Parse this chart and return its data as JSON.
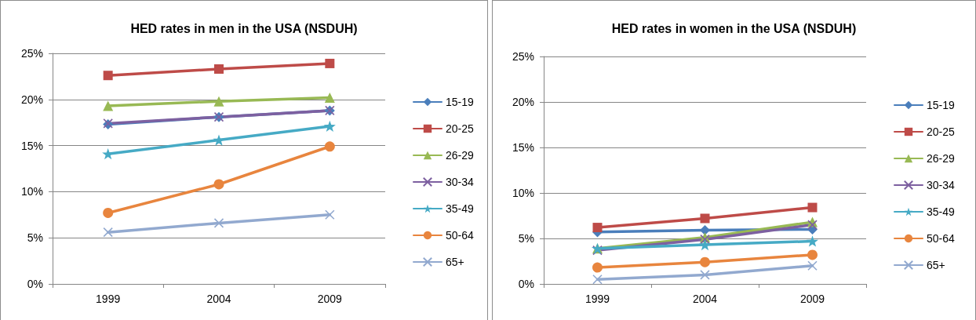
{
  "chart_data": [
    {
      "type": "line",
      "title": "HED rates in men in the USA (NSDUH)",
      "categories": [
        "1999",
        "2004",
        "2009"
      ],
      "ylim": [
        0,
        25
      ],
      "yticks": [
        {
          "value": 0,
          "label": "0%"
        },
        {
          "value": 5,
          "label": "5%"
        },
        {
          "value": 10,
          "label": "10%"
        },
        {
          "value": 15,
          "label": "15%"
        },
        {
          "value": 20,
          "label": "20%"
        },
        {
          "value": 25,
          "label": "25%"
        }
      ],
      "grid": "y",
      "legend": "right",
      "series": [
        {
          "name": "15-19",
          "color": "#4a7ebb",
          "marker": "diamond",
          "values": [
            17.3,
            18.1,
            18.8
          ]
        },
        {
          "name": "20-25",
          "color": "#be4b48",
          "marker": "square",
          "values": [
            22.6,
            23.3,
            23.9
          ]
        },
        {
          "name": "26-29",
          "color": "#98b954",
          "marker": "triangle",
          "values": [
            19.3,
            19.8,
            20.2
          ]
        },
        {
          "name": "30-34",
          "color": "#7d60a0",
          "marker": "cross",
          "values": [
            17.4,
            18.1,
            18.8
          ]
        },
        {
          "name": "35-49",
          "color": "#46aac5",
          "marker": "star",
          "values": [
            14.1,
            15.6,
            17.1
          ]
        },
        {
          "name": "50-64",
          "color": "#e8853e",
          "marker": "circle",
          "values": [
            7.7,
            10.8,
            14.9
          ]
        },
        {
          "name": "65+",
          "color": "#92a9cf",
          "marker": "cross",
          "values": [
            5.6,
            6.6,
            7.5
          ]
        }
      ]
    },
    {
      "type": "line",
      "title": "HED rates in women in the USA (NSDUH)",
      "categories": [
        "1999",
        "2004",
        "2009"
      ],
      "ylim": [
        0,
        25
      ],
      "yticks": [
        {
          "value": 0,
          "label": "0%"
        },
        {
          "value": 5,
          "label": "5%"
        },
        {
          "value": 10,
          "label": "10%"
        },
        {
          "value": 15,
          "label": "15%"
        },
        {
          "value": 20,
          "label": "20%"
        },
        {
          "value": 25,
          "label": "25%"
        }
      ],
      "grid": "y",
      "legend": "right",
      "series": [
        {
          "name": "15-19",
          "color": "#4a7ebb",
          "marker": "diamond",
          "values": [
            5.7,
            5.9,
            6.0
          ]
        },
        {
          "name": "20-25",
          "color": "#be4b48",
          "marker": "square",
          "values": [
            6.2,
            7.2,
            8.4
          ]
        },
        {
          "name": "26-29",
          "color": "#98b954",
          "marker": "triangle",
          "values": [
            3.9,
            5.1,
            6.8
          ]
        },
        {
          "name": "30-34",
          "color": "#7d60a0",
          "marker": "cross",
          "values": [
            3.7,
            4.9,
            6.5
          ]
        },
        {
          "name": "35-49",
          "color": "#46aac5",
          "marker": "star",
          "values": [
            3.9,
            4.3,
            4.7
          ]
        },
        {
          "name": "50-64",
          "color": "#e8853e",
          "marker": "circle",
          "values": [
            1.8,
            2.4,
            3.2
          ]
        },
        {
          "name": "65+",
          "color": "#92a9cf",
          "marker": "cross",
          "values": [
            0.5,
            1.0,
            2.0
          ]
        }
      ]
    }
  ]
}
